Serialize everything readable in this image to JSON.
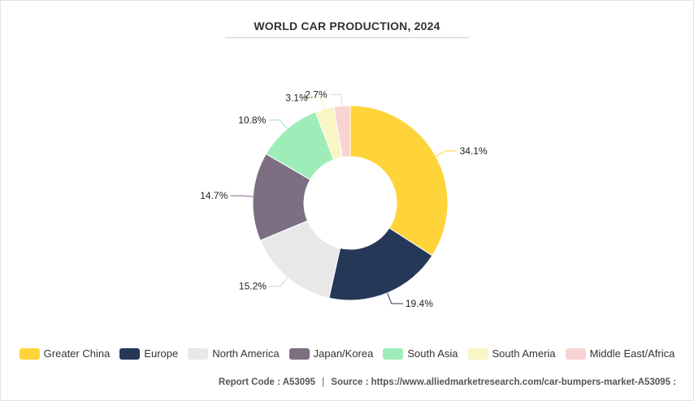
{
  "chart_data": {
    "type": "pie",
    "title": "WORLD CAR PRODUCTION, 2024",
    "categories": [
      "Greater China",
      "Europe",
      "North America",
      "Japan/Korea",
      "South Asia",
      "South Ameria",
      "Middle East/Africa"
    ],
    "values": [
      34.1,
      19.4,
      15.2,
      14.7,
      10.8,
      3.1,
      2.7
    ],
    "value_labels": [
      "34.1%",
      "19.4%",
      "15.2%",
      "14.7%",
      "10.8%",
      "3.1%",
      "2.7%"
    ],
    "colors": [
      "#FFD43B",
      "#253858",
      "#E8E8E8",
      "#7D6E82",
      "#9EEDB9",
      "#F7F6C4",
      "#F9D3D4"
    ],
    "donut": true,
    "legend_position": "bottom"
  },
  "footer": {
    "report_code": "Report Code : A53095",
    "separator": "|",
    "source": "Source : https://www.alliedmarketresearch.com/car-bumpers-market-A53095 :"
  }
}
